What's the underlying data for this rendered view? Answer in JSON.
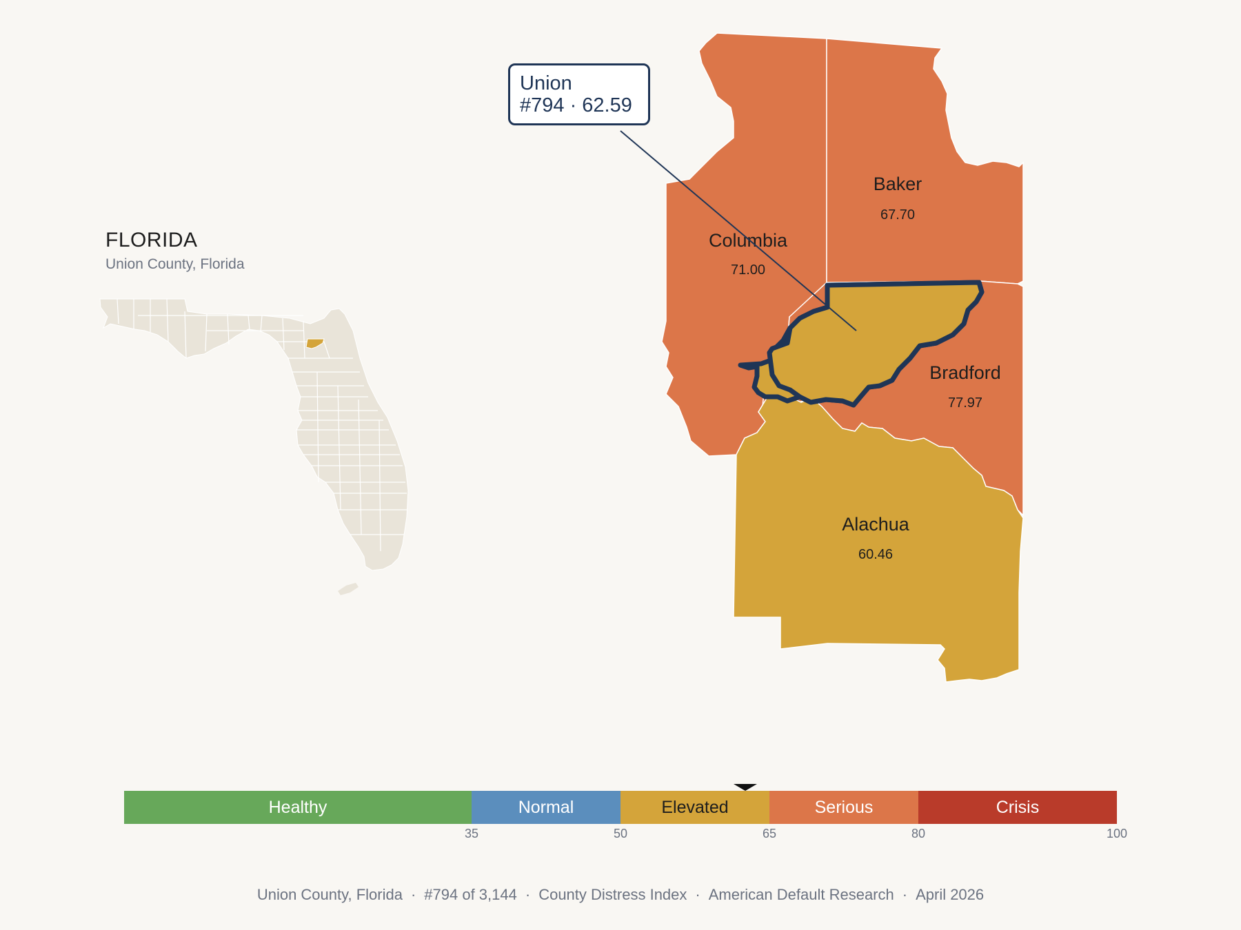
{
  "state": {
    "name": "FLORIDA",
    "subtitle": "Union County, Florida",
    "highlight_color": "#d4a43a",
    "base_color": "#e9e4d9"
  },
  "tooltip": {
    "name": "Union",
    "detail": "#794 · 62.59"
  },
  "counties": [
    {
      "name": "Baker",
      "value": "67.70",
      "color": "#dc7649"
    },
    {
      "name": "Columbia",
      "value": "71.00",
      "color": "#dc7649"
    },
    {
      "name": "Bradford",
      "value": "77.97",
      "color": "#dc7649"
    },
    {
      "name": "Alachua",
      "value": "60.46",
      "color": "#d4a43a"
    },
    {
      "name": "Union",
      "value": "62.59",
      "color": "#d4a43a",
      "selected": true
    }
  ],
  "legend": {
    "marker_value": 62.59,
    "range": [
      0,
      100
    ],
    "segments": [
      {
        "label": "Healthy",
        "from": 0,
        "to": 35,
        "color": "#67a85a",
        "text_color": "#ffffff"
      },
      {
        "label": "Normal",
        "from": 35,
        "to": 50,
        "color": "#5b8ebd",
        "text_color": "#ffffff"
      },
      {
        "label": "Elevated",
        "from": 50,
        "to": 65,
        "color": "#d4a43a",
        "text_color": "#1d1d1d"
      },
      {
        "label": "Serious",
        "from": 65,
        "to": 80,
        "color": "#dc7649",
        "text_color": "#ffffff"
      },
      {
        "label": "Crisis",
        "from": 80,
        "to": 100,
        "color": "#b93b2a",
        "text_color": "#ffffff"
      }
    ],
    "ticks": [
      "35",
      "50",
      "65",
      "80",
      "100"
    ],
    "tick_values": [
      35,
      50,
      65,
      80,
      100
    ]
  },
  "footer": [
    "Union County, Florida",
    "#794 of 3,144",
    "County Distress Index",
    "American Default Research",
    "April 2026"
  ],
  "colors": {
    "outline": "#1f3556",
    "background": "#f9f7f3"
  }
}
